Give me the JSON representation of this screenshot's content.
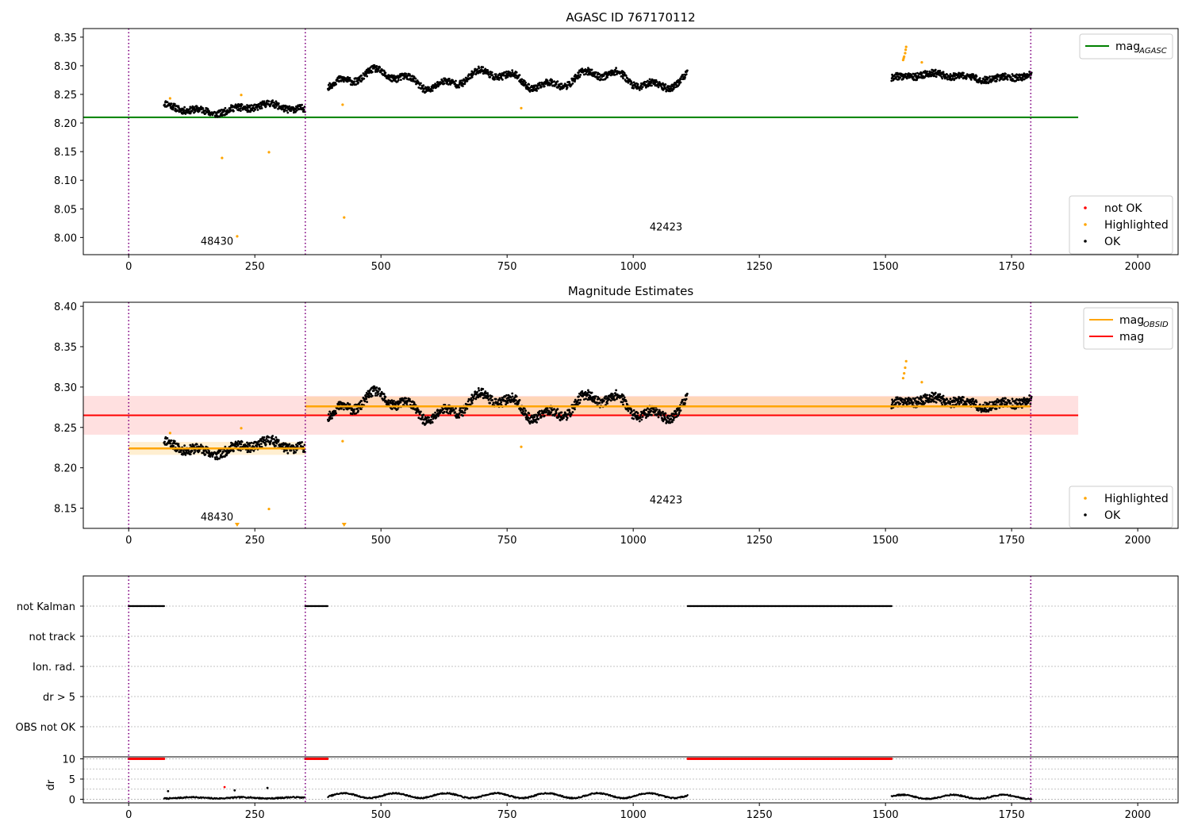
{
  "chart_data": [
    {
      "type": "scatter",
      "title": "AGASC ID 767170112",
      "xlim": [
        -90,
        2080
      ],
      "ylim": [
        7.97,
        8.365
      ],
      "xticks": [
        0,
        250,
        500,
        750,
        1000,
        1250,
        1500,
        1750,
        2000
      ],
      "yticks": [
        8.0,
        8.05,
        8.1,
        8.15,
        8.2,
        8.25,
        8.3,
        8.35
      ],
      "grid": false,
      "legends": [
        {
          "placement": "top-right",
          "entries": [
            {
              "label": "mag",
              "sub": "AGASC",
              "color": "#008000",
              "kind": "line"
            }
          ]
        },
        {
          "placement": "bottom-right",
          "entries": [
            {
              "label": "not OK",
              "color": "#ff0000",
              "kind": "dot"
            },
            {
              "label": "Highlighted",
              "color": "#ffa500",
              "kind": "dot"
            },
            {
              "label": "OK",
              "color": "#000000",
              "kind": "dot"
            }
          ]
        }
      ],
      "vlines": [
        0,
        350,
        1788
      ],
      "hlines": [
        {
          "y": 8.21,
          "x": [
            -90,
            1882
          ],
          "color": "#008000"
        }
      ],
      "annotations": [
        {
          "text": "48430",
          "x": 175,
          "y": 7.987
        },
        {
          "text": "42423",
          "x": 1065,
          "y": 8.012
        }
      ],
      "ok_segments": [
        {
          "x": [
            70,
            350
          ],
          "mean": 8.225,
          "amp": 0.006,
          "noise": 0.012
        },
        {
          "x": [
            395,
            1108
          ],
          "mean": 8.276,
          "amp": 0.012,
          "noise": 0.012
        },
        {
          "x": [
            1512,
            1790
          ],
          "mean": 8.281,
          "amp": 0.004,
          "noise": 0.012
        }
      ],
      "highlighted_points": [
        {
          "x": 82,
          "y": 8.243
        },
        {
          "x": 185,
          "y": 8.139
        },
        {
          "x": 215,
          "y": 8.002
        },
        {
          "x": 223,
          "y": 8.249
        },
        {
          "x": 278,
          "y": 8.149
        },
        {
          "x": 424,
          "y": 8.232
        },
        {
          "x": 427,
          "y": 8.035
        },
        {
          "x": 778,
          "y": 8.226
        },
        {
          "x": 1535,
          "y": 8.31
        },
        {
          "x": 1537,
          "y": 8.316
        },
        {
          "x": 1539,
          "y": 8.322
        },
        {
          "x": 1540,
          "y": 8.328
        },
        {
          "x": 1541,
          "y": 8.333
        },
        {
          "x": 1536,
          "y": 8.313
        },
        {
          "x": 1572,
          "y": 8.306
        }
      ]
    },
    {
      "type": "scatter",
      "title": "Magnitude Estimates",
      "xlim": [
        -90,
        2080
      ],
      "ylim": [
        8.125,
        8.405
      ],
      "xticks": [
        0,
        250,
        500,
        750,
        1000,
        1250,
        1500,
        1750,
        2000
      ],
      "yticks": [
        8.15,
        8.2,
        8.25,
        8.3,
        8.35,
        8.4
      ],
      "grid": false,
      "legends": [
        {
          "placement": "top-right",
          "entries": [
            {
              "label": "mag",
              "sub": "OBSID",
              "color": "#ffa500",
              "kind": "line"
            },
            {
              "label": "mag",
              "sub": "",
              "color": "#ff0000",
              "kind": "line"
            }
          ]
        },
        {
          "placement": "bottom-right",
          "entries": [
            {
              "label": "Highlighted",
              "color": "#ffa500",
              "kind": "dot"
            },
            {
              "label": "OK",
              "color": "#000000",
              "kind": "dot"
            }
          ]
        }
      ],
      "vlines": [
        0,
        350,
        1788
      ],
      "bands": [
        {
          "x": [
            -90,
            1882
          ],
          "y": [
            8.241,
            8.289
          ],
          "color": "#ff0000",
          "opacity": 0.12
        },
        {
          "x": [
            0,
            350
          ],
          "y": [
            8.216,
            8.232
          ],
          "color": "#ffa500",
          "opacity": 0.18
        },
        {
          "x": [
            350,
            1788
          ],
          "y": [
            8.265,
            8.288
          ],
          "color": "#ffa500",
          "opacity": 0.18
        }
      ],
      "mag_line": {
        "y": 8.265,
        "x": [
          -90,
          1882
        ]
      },
      "obsid_lines": [
        {
          "x": [
            0,
            350
          ],
          "y": 8.224
        },
        {
          "x": [
            350,
            1788
          ],
          "y": 8.276
        }
      ],
      "annotations": [
        {
          "text": "48430",
          "x": 175,
          "y": 8.135
        },
        {
          "text": "42423",
          "x": 1065,
          "y": 8.156
        }
      ],
      "ok_segments": [
        {
          "x": [
            70,
            350
          ],
          "mean": 8.225,
          "amp": 0.006,
          "noise": 0.012
        },
        {
          "x": [
            395,
            1108
          ],
          "mean": 8.276,
          "amp": 0.012,
          "noise": 0.012
        },
        {
          "x": [
            1512,
            1790
          ],
          "mean": 8.281,
          "amp": 0.004,
          "noise": 0.012
        }
      ],
      "highlighted_points": [
        {
          "x": 82,
          "y": 8.243
        },
        {
          "x": 223,
          "y": 8.249
        },
        {
          "x": 278,
          "y": 8.149
        },
        {
          "x": 424,
          "y": 8.233
        },
        {
          "x": 778,
          "y": 8.226
        },
        {
          "x": 1535,
          "y": 8.311
        },
        {
          "x": 1537,
          "y": 8.317
        },
        {
          "x": 1539,
          "y": 8.324
        },
        {
          "x": 1541,
          "y": 8.332
        },
        {
          "x": 1572,
          "y": 8.306
        }
      ],
      "offscale_markers": [
        {
          "x": 215
        },
        {
          "x": 427
        }
      ]
    },
    {
      "type": "scatter",
      "title": "",
      "xlim": [
        -90,
        2080
      ],
      "xticks": [
        0,
        250,
        500,
        750,
        1000,
        1250,
        1500,
        1750,
        2000
      ],
      "flag_labels": [
        "not Kalman",
        "not track",
        "Ion. rad.",
        "dr > 5",
        "OBS not OK"
      ],
      "flag_ranges": [
        {
          "flag": "not Kalman",
          "ranges": [
            [
              0,
              70
            ],
            [
              350,
              395
            ],
            [
              1108,
              1512
            ]
          ]
        }
      ],
      "vlines": [
        0,
        350,
        1788
      ],
      "grid": true,
      "dr_panel": {
        "ylabel": "dr",
        "ylim": [
          -0.5,
          10.5
        ],
        "yticks": [
          0,
          5,
          10
        ],
        "capped_value": 10,
        "capped_ranges": [
          [
            0,
            70
          ],
          [
            350,
            395
          ],
          [
            1108,
            1512
          ]
        ],
        "segments": [
          {
            "x": [
              70,
              350
            ],
            "base": 0.35,
            "amp": 0.15
          },
          {
            "x": [
              395,
              1108
            ],
            "base": 0.9,
            "amp": 0.6
          },
          {
            "x": [
              1512,
              1790
            ],
            "base": 0.6,
            "amp": 0.5
          }
        ],
        "outliers": [
          {
            "x": 190,
            "y": 3.0,
            "color": "#ff0000"
          },
          {
            "x": 210,
            "y": 2.2,
            "color": "#000000"
          },
          {
            "x": 275,
            "y": 2.8,
            "color": "#000000"
          },
          {
            "x": 78,
            "y": 2.0,
            "color": "#000000"
          }
        ]
      }
    }
  ]
}
